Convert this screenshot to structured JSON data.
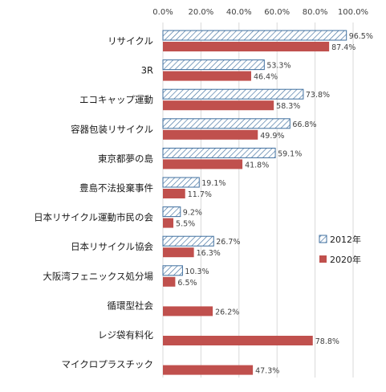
{
  "colors": {
    "series_2012_stroke": "#3f6f9f",
    "series_2012_fill": "#ffffff",
    "series_2020_fill": "#c0504d",
    "gridline": "#d9d9d9",
    "tick_text": "#404040",
    "label_text": "#1a1a1a"
  },
  "chart_data": {
    "type": "bar",
    "orientation": "horizontal",
    "title": "",
    "xlabel": "",
    "ylabel": "",
    "xlim": [
      0,
      100
    ],
    "x_ticks": [
      "0.0%",
      "20.0%",
      "40.0%",
      "60.0%",
      "80.0%",
      "100.0%"
    ],
    "grid": true,
    "legend_position": "right",
    "categories": [
      "リサイクル",
      "3R",
      "エコキャップ運動",
      "容器包装リサイクル",
      "東京都夢の島",
      "豊島不法投棄事件",
      "日本リサイクル運動市民の会",
      "日本リサイクル協会",
      "大阪湾フェニックス処分場",
      "循環型社会",
      "レジ袋有料化",
      "マイクロプラスチック"
    ],
    "series": [
      {
        "name": "2012年",
        "pattern": "hatched",
        "values": [
          96.5,
          53.3,
          73.8,
          66.8,
          59.1,
          19.1,
          9.2,
          26.7,
          10.3,
          null,
          null,
          null
        ],
        "labels": [
          "96.5%",
          "53.3%",
          "73.8%",
          "66.8%",
          "59.1%",
          "19.1%",
          "9.2%",
          "26.7%",
          "10.3%",
          "",
          "",
          ""
        ]
      },
      {
        "name": "2020年",
        "pattern": "solid",
        "values": [
          87.4,
          46.4,
          58.3,
          49.9,
          41.8,
          11.7,
          5.5,
          16.3,
          6.5,
          26.2,
          78.8,
          47.3
        ],
        "labels": [
          "87.4%",
          "46.4%",
          "58.3%",
          "49.9%",
          "41.8%",
          "11.7%",
          "5.5%",
          "16.3%",
          "6.5%",
          "26.2%",
          "78.8%",
          "47.3%"
        ]
      }
    ]
  }
}
